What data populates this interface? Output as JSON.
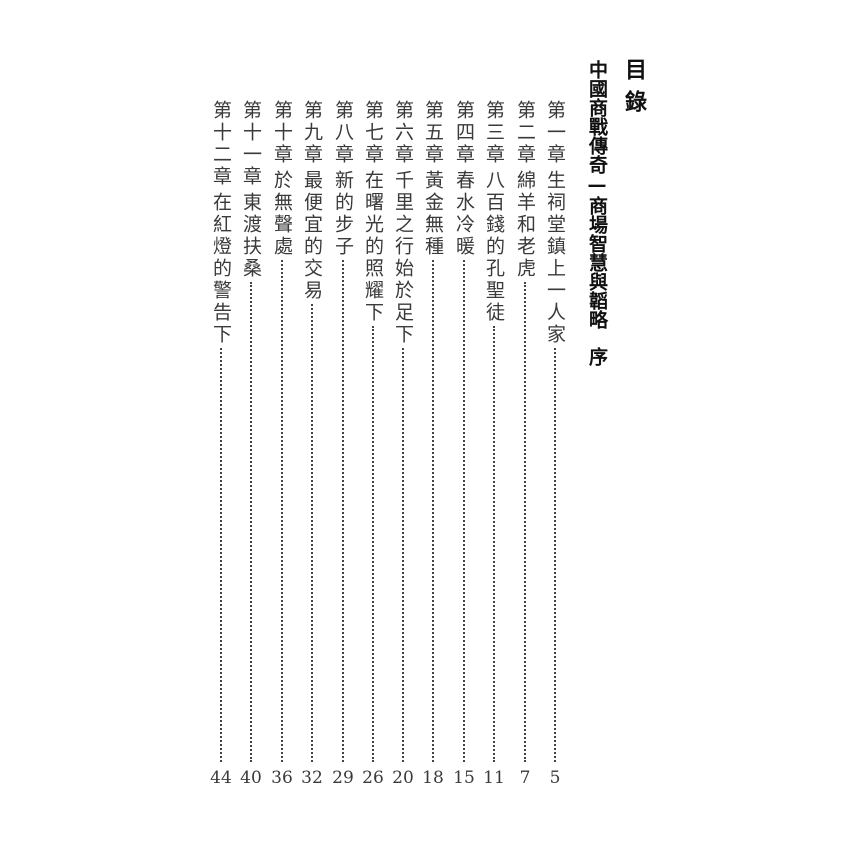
{
  "heading": "目錄",
  "book_title": "中國商戰傳奇—商場智慧與韜略",
  "preface": "序",
  "chapters": [
    {
      "label": "第一章",
      "title": "生祠堂鎮上一人家",
      "page": "5"
    },
    {
      "label": "第二章",
      "title": "綿羊和老虎",
      "page": "7"
    },
    {
      "label": "第三章",
      "title": "八百錢的孔聖徒",
      "page": "11"
    },
    {
      "label": "第四章",
      "title": "春水冷暖",
      "page": "15"
    },
    {
      "label": "第五章",
      "title": "黃金無種",
      "page": "18"
    },
    {
      "label": "第六章",
      "title": "千里之行始於足下",
      "page": "20"
    },
    {
      "label": "第七章",
      "title": "在曙光的照耀下",
      "page": "26"
    },
    {
      "label": "第八章",
      "title": "新的步子",
      "page": "29"
    },
    {
      "label": "第九章",
      "title": "最便宜的交易",
      "page": "32"
    },
    {
      "label": "第十章",
      "title": "於無聲處",
      "page": "36"
    },
    {
      "label": "第十一章",
      "title": "東渡扶桑",
      "page": "40"
    },
    {
      "label": "第十二章",
      "title": "在紅燈的警告下",
      "page": "44"
    }
  ]
}
